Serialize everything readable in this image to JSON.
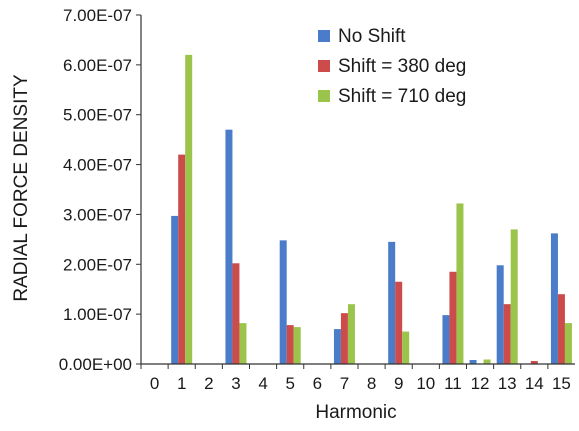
{
  "chart_data": {
    "type": "bar",
    "title": "",
    "xlabel": "Harmonic",
    "ylabel": "RADIAL FORCE DENSITY",
    "ylim": [
      0,
      7e-07
    ],
    "yticks": [
      "0.00E+00",
      "1.00E-07",
      "2.00E-07",
      "3.00E-07",
      "4.00E-07",
      "5.00E-07",
      "6.00E-07",
      "7.00E-07"
    ],
    "categories": [
      "0",
      "1",
      "2",
      "3",
      "4",
      "5",
      "6",
      "7",
      "8",
      "9",
      "10",
      "11",
      "12",
      "13",
      "14",
      "15"
    ],
    "grid": false,
    "legend_position": "top-right",
    "series": [
      {
        "name": "No Shift",
        "color": "#4a7cc9",
        "values": [
          0,
          2.97e-07,
          0,
          4.7e-07,
          0,
          2.48e-07,
          0,
          7e-08,
          0,
          2.45e-07,
          0,
          9.8e-08,
          8e-09,
          1.98e-07,
          0,
          2.62e-07
        ]
      },
      {
        "name": "Shift = 380 deg",
        "color": "#cc4b4b",
        "values": [
          0,
          4.2e-07,
          0,
          2.02e-07,
          0,
          7.8e-08,
          0,
          1.02e-07,
          0,
          1.65e-07,
          0,
          1.85e-07,
          0,
          1.2e-07,
          6e-09,
          1.4e-07
        ]
      },
      {
        "name": "Shift = 710 deg",
        "color": "#9bc44a",
        "values": [
          0,
          6.2e-07,
          0,
          8.2e-08,
          0,
          7.4e-08,
          0,
          1.2e-07,
          0,
          6.5e-08,
          0,
          3.22e-07,
          9e-09,
          2.7e-07,
          0,
          8.2e-08
        ]
      }
    ]
  }
}
